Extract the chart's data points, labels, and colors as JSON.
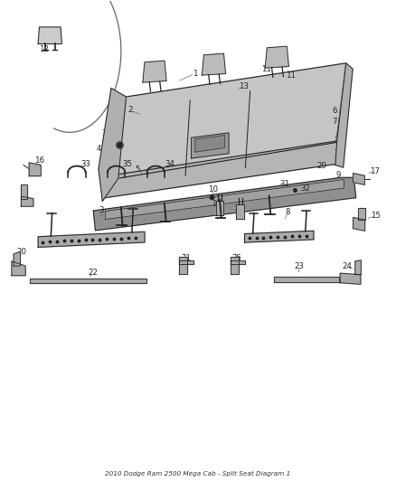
{
  "title": "2010 Dodge Ram 2500 Mega Cab - Split Seat Diagram 1",
  "bg_color": "#ffffff",
  "fig_width": 4.38,
  "fig_height": 5.33
}
